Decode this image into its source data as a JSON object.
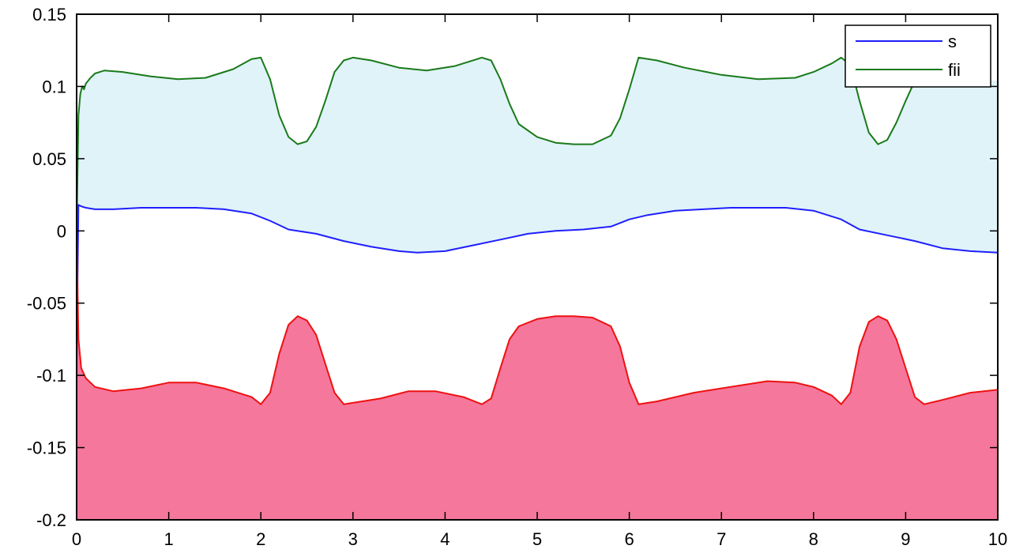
{
  "chart_data": {
    "type": "line",
    "title": "",
    "xlabel": "",
    "ylabel": "",
    "xlim": [
      0,
      10
    ],
    "ylim": [
      -0.2,
      0.15
    ],
    "x_ticks": [
      0,
      1,
      2,
      3,
      4,
      5,
      6,
      7,
      8,
      9,
      10
    ],
    "x_tick_labels": [
      "0",
      "1",
      "2",
      "3",
      "4",
      "5",
      "6",
      "7",
      "8",
      "9",
      "10"
    ],
    "y_ticks": [
      0.15,
      0.1,
      0.05,
      0,
      -0.05,
      -0.1,
      -0.15,
      -0.2
    ],
    "y_tick_labels": [
      "0.15",
      "0.1",
      "0.05",
      "0",
      "-0.05",
      "-0.1",
      "-0.15",
      "-0.2"
    ],
    "grid": false,
    "legend_position": "top-right",
    "colors": {
      "s": "#1f1fff",
      "fii": "#1a7a1a",
      "lower": "#ee1111",
      "upper_band_fill": "#dff3f8",
      "lower_band_fill": "#f5779c"
    },
    "series": [
      {
        "name": "s",
        "x": [
          0,
          0.02,
          0.05,
          0.1,
          0.2,
          0.4,
          0.7,
          1.0,
          1.3,
          1.6,
          1.9,
          2.1,
          2.3,
          2.6,
          2.9,
          3.2,
          3.5,
          3.7,
          4.0,
          4.3,
          4.6,
          4.9,
          5.2,
          5.5,
          5.8,
          6.0,
          6.2,
          6.5,
          6.8,
          7.1,
          7.4,
          7.7,
          8.0,
          8.3,
          8.5,
          8.8,
          9.1,
          9.4,
          9.7,
          10.0
        ],
        "values": [
          -0.09,
          0.018,
          0.017,
          0.016,
          0.015,
          0.015,
          0.016,
          0.016,
          0.016,
          0.015,
          0.012,
          0.007,
          0.001,
          -0.002,
          -0.007,
          -0.011,
          -0.014,
          -0.015,
          -0.014,
          -0.01,
          -0.006,
          -0.002,
          0.0,
          0.001,
          0.003,
          0.008,
          0.011,
          0.014,
          0.015,
          0.016,
          0.016,
          0.016,
          0.014,
          0.008,
          0.001,
          -0.003,
          -0.007,
          -0.012,
          -0.014,
          -0.015
        ]
      },
      {
        "name": "fii",
        "x": [
          0,
          0.02,
          0.04,
          0.06,
          0.08,
          0.1,
          0.15,
          0.2,
          0.3,
          0.5,
          0.8,
          1.1,
          1.4,
          1.7,
          1.9,
          2.0,
          2.1,
          2.2,
          2.3,
          2.4,
          2.5,
          2.6,
          2.7,
          2.8,
          2.9,
          3.0,
          3.2,
          3.5,
          3.8,
          4.1,
          4.4,
          4.5,
          4.6,
          4.7,
          4.8,
          5.0,
          5.2,
          5.4,
          5.6,
          5.8,
          5.9,
          6.0,
          6.1,
          6.3,
          6.6,
          7.0,
          7.4,
          7.8,
          8.0,
          8.2,
          8.3,
          8.4,
          8.5,
          8.6,
          8.7,
          8.8,
          8.9,
          9.0,
          9.1
        ],
        "values": [
          0.0,
          0.08,
          0.095,
          0.1,
          0.098,
          0.102,
          0.106,
          0.109,
          0.111,
          0.11,
          0.107,
          0.105,
          0.106,
          0.112,
          0.119,
          0.12,
          0.105,
          0.08,
          0.065,
          0.06,
          0.062,
          0.072,
          0.09,
          0.11,
          0.118,
          0.12,
          0.118,
          0.113,
          0.111,
          0.114,
          0.12,
          0.118,
          0.105,
          0.088,
          0.074,
          0.065,
          0.061,
          0.06,
          0.06,
          0.066,
          0.078,
          0.098,
          0.12,
          0.118,
          0.113,
          0.108,
          0.105,
          0.106,
          0.11,
          0.116,
          0.12,
          0.115,
          0.09,
          0.068,
          0.06,
          0.063,
          0.075,
          0.09,
          0.104
        ]
      },
      {
        "name": "",
        "x": [
          0,
          0.02,
          0.05,
          0.1,
          0.2,
          0.4,
          0.7,
          1.0,
          1.3,
          1.6,
          1.9,
          2.0,
          2.1,
          2.2,
          2.3,
          2.4,
          2.5,
          2.6,
          2.7,
          2.8,
          2.9,
          3.0,
          3.3,
          3.6,
          3.9,
          4.2,
          4.4,
          4.5,
          4.6,
          4.7,
          4.8,
          5.0,
          5.2,
          5.4,
          5.6,
          5.8,
          5.9,
          6.0,
          6.1,
          6.3,
          6.7,
          7.1,
          7.5,
          7.8,
          8.0,
          8.2,
          8.3,
          8.4,
          8.5,
          8.6,
          8.7,
          8.8,
          8.9,
          9.0,
          9.1,
          9.2,
          9.4,
          9.7,
          10.0
        ],
        "values": [
          0.0,
          -0.075,
          -0.095,
          -0.102,
          -0.108,
          -0.111,
          -0.109,
          -0.105,
          -0.105,
          -0.109,
          -0.115,
          -0.12,
          -0.112,
          -0.085,
          -0.065,
          -0.059,
          -0.062,
          -0.072,
          -0.092,
          -0.112,
          -0.12,
          -0.119,
          -0.116,
          -0.111,
          -0.111,
          -0.115,
          -0.12,
          -0.116,
          -0.095,
          -0.075,
          -0.066,
          -0.061,
          -0.059,
          -0.059,
          -0.06,
          -0.066,
          -0.08,
          -0.105,
          -0.12,
          -0.118,
          -0.112,
          -0.108,
          -0.104,
          -0.105,
          -0.108,
          -0.114,
          -0.12,
          -0.112,
          -0.08,
          -0.063,
          -0.059,
          -0.062,
          -0.075,
          -0.095,
          -0.115,
          -0.12,
          -0.117,
          -0.112,
          -0.11
        ]
      }
    ]
  }
}
